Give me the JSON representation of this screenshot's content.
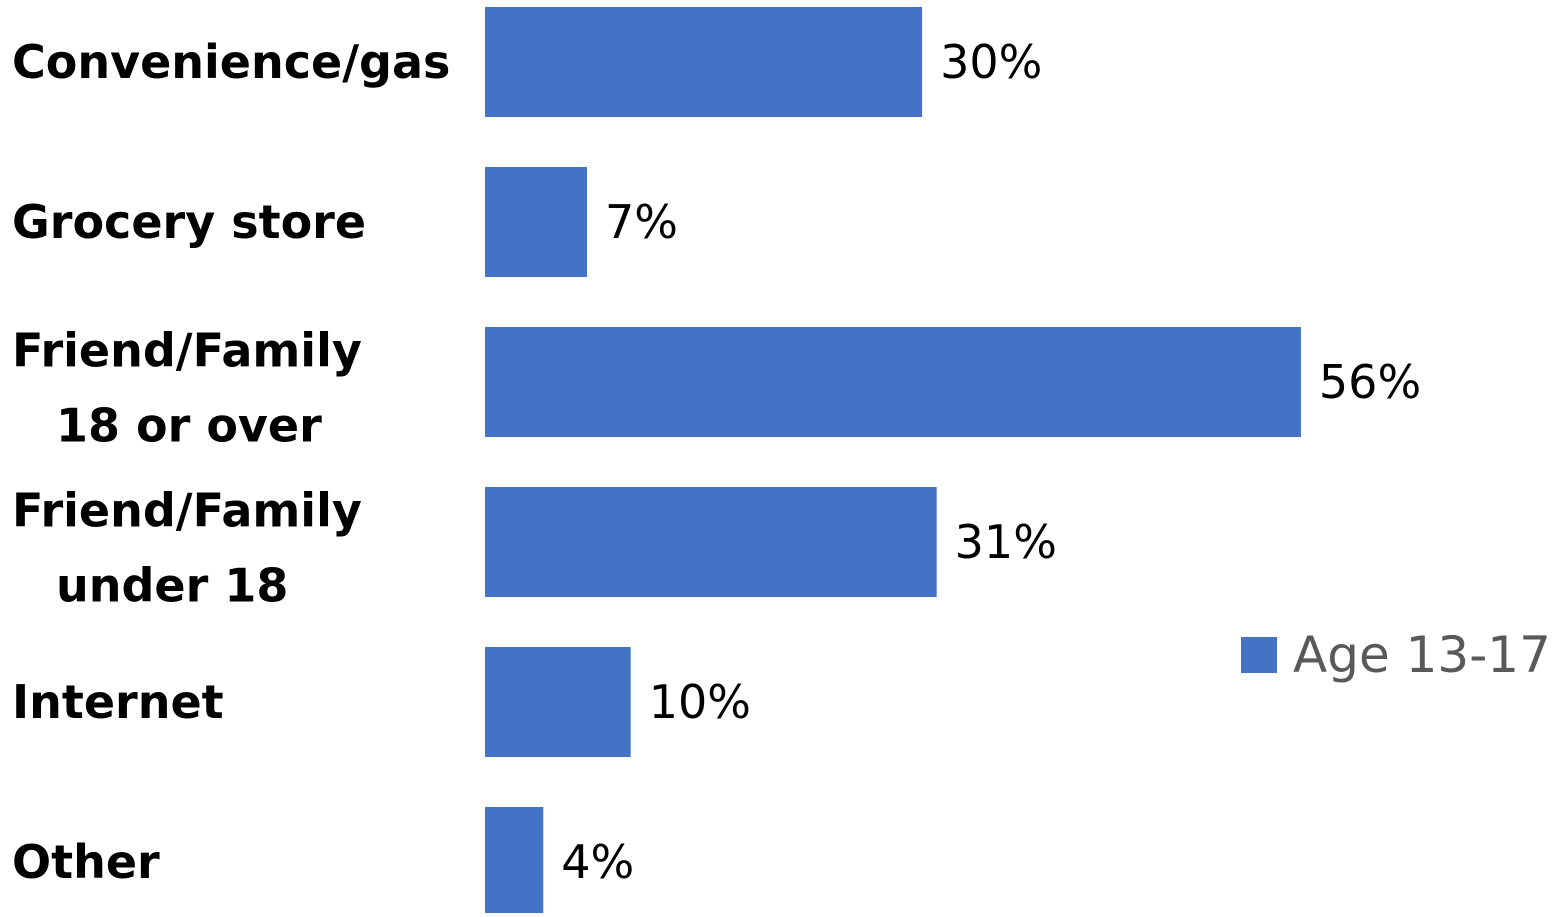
{
  "chart_data": {
    "type": "bar",
    "orientation": "horizontal",
    "categories": [
      [
        "Convenience/gas"
      ],
      [
        "Grocery store"
      ],
      [
        "Friend/Family",
        "18 or over"
      ],
      [
        "Friend/Family",
        "under 18"
      ],
      [
        "Internet"
      ],
      [
        "Other"
      ]
    ],
    "series": [
      {
        "name": "Age 13-17",
        "values": [
          30,
          7,
          56,
          31,
          10,
          4
        ],
        "value_labels": [
          "30%",
          "7%",
          "56%",
          "31%",
          "10%",
          "4%"
        ],
        "color": "#4472C4"
      }
    ],
    "xlim": [
      0,
      100
    ],
    "grid": false,
    "legend": "right"
  }
}
